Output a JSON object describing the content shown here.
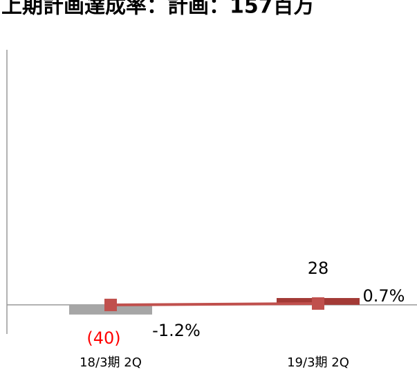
{
  "chart_data": {
    "type": "bar_line",
    "title": "上期計画達成率：計画：157百万",
    "categories": [
      "18/3期 2Q",
      "19/3期 2Q"
    ],
    "series": [
      {
        "values": [
          -40,
          28
        ],
        "value_labels": [
          "(40)",
          "28"
        ],
        "colors": [
          "#a6a6a6",
          "#a33a36"
        ],
        "label_colors": [
          "#ff0000",
          "#000000"
        ]
      },
      {
        "values": [
          -1.2,
          0.7
        ],
        "value_labels": [
          "-1.2%",
          "0.7%"
        ],
        "color": "#c0504d",
        "axis": "y2"
      }
    ],
    "ylim": [
      -120,
      1050
    ],
    "y2lim": [
      -40,
      340
    ]
  }
}
